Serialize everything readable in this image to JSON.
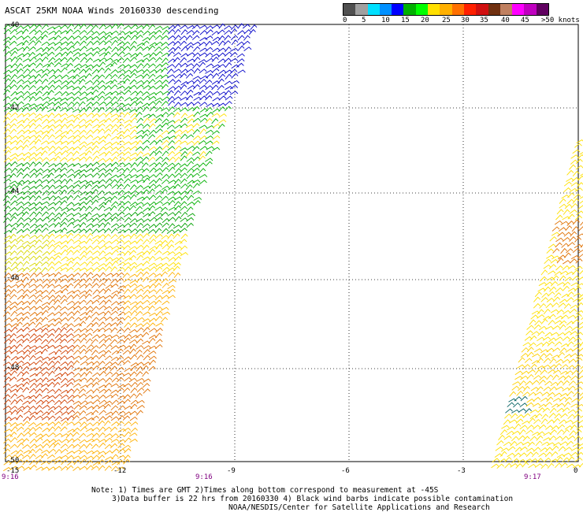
{
  "title": "ASCAT 25KM NOAA Winds 20160330 descending",
  "legend": {
    "colors": [
      "#505050",
      "#a0a0a0",
      "#00e0ff",
      "#0090ff",
      "#0000ff",
      "#00b000",
      "#00ff00",
      "#ffe000",
      "#ffb000",
      "#ff7000",
      "#ff2000",
      "#d01010",
      "#703010",
      "#c08060",
      "#ff00ff",
      "#c000c0",
      "#600060"
    ],
    "labels": [
      "0",
      "5",
      "10",
      "15",
      "20",
      "25",
      "30",
      "35",
      "40",
      "45",
      ">50 knots"
    ]
  },
  "map": {
    "x_ticks": [
      "-15",
      "-12",
      "-9",
      "-6",
      "-3",
      "0"
    ],
    "y_ticks": [
      "-40",
      "-42",
      "-44",
      "-46",
      "-48",
      "-50"
    ],
    "times": [
      "9:16",
      "9:16",
      "9:17"
    ],
    "grid": "dotted"
  },
  "notes": {
    "line1": "Note: 1) Times are GMT 2)Times along bottom correspond to measurement at -45S",
    "line2": "3)Data buffer is 22 hrs from 20160330 4) Black wind barbs indicate possible contamination",
    "line3": "NOAA/NESDIS/Center for Satellite Applications and Research"
  }
}
